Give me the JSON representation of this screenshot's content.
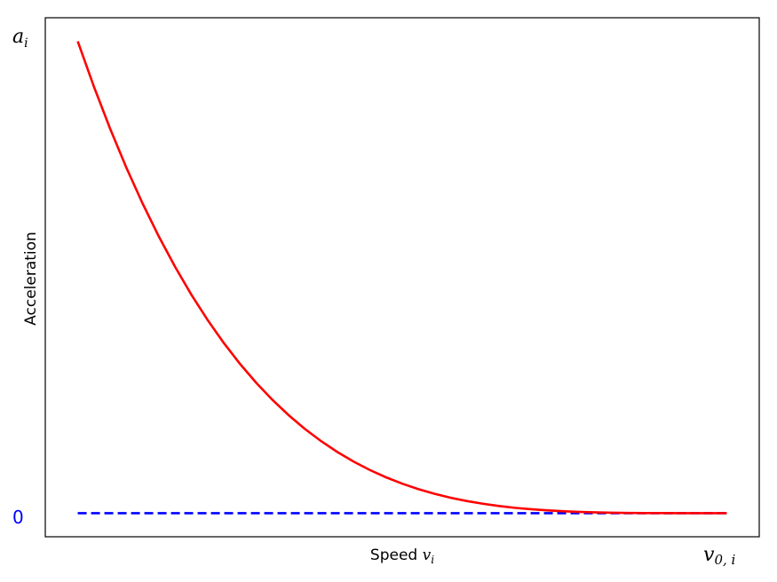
{
  "chart_data": {
    "type": "line",
    "xlabel": "Speed",
    "xlabel_var": "v",
    "xlabel_sub": "i",
    "ylabel": "Acceleration",
    "y_top_label": "a",
    "y_top_label_sub": "i",
    "y_zero_label": "0",
    "x_end_label": "v",
    "x_end_label_sub": "0, i",
    "xlim": [
      -0.05,
      1.05
    ],
    "ylim": [
      -0.05,
      1.05
    ],
    "grid": false,
    "series": [
      {
        "style": "solid",
        "color": "#ff0000",
        "x": [
          0.0,
          0.025,
          0.05,
          0.075,
          0.1,
          0.125,
          0.15,
          0.175,
          0.2,
          0.225,
          0.25,
          0.275,
          0.3,
          0.325,
          0.35,
          0.375,
          0.4,
          0.425,
          0.45,
          0.475,
          0.5,
          0.525,
          0.55,
          0.575,
          0.6,
          0.625,
          0.65,
          0.675,
          0.7,
          0.725,
          0.75,
          0.775,
          0.8,
          0.825,
          0.85,
          0.875,
          0.9,
          0.925,
          0.95,
          0.975,
          1.0
        ],
        "y": [
          1.0,
          0.9037,
          0.8145,
          0.732,
          0.6561,
          0.5862,
          0.522,
          0.4633,
          0.4096,
          0.3607,
          0.3164,
          0.2763,
          0.2401,
          0.2076,
          0.1785,
          0.1526,
          0.1296,
          0.1093,
          0.0915,
          0.076,
          0.0625,
          0.0509,
          0.041,
          0.0325,
          0.0256,
          0.0198,
          0.015,
          0.0111,
          0.0081,
          0.0058,
          0.0039,
          0.0026,
          0.0016,
          0.0009,
          0.0005,
          0.0002,
          0.0001,
          0.0,
          0.0,
          0.0,
          0.0
        ]
      },
      {
        "style": "dashed",
        "color": "#0000ff",
        "x": [
          0.0,
          1.0
        ],
        "y": [
          0.0,
          0.0
        ]
      }
    ]
  }
}
